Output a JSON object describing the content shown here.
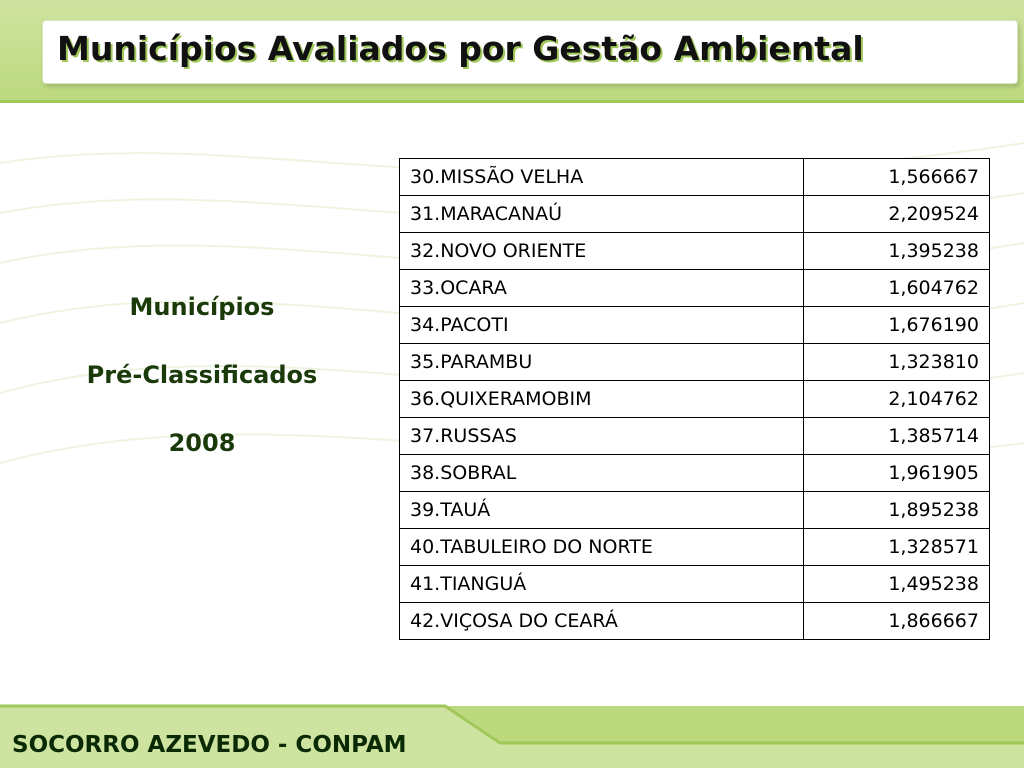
{
  "header": {
    "title": "Municípios Avaliados por Gestão Ambiental"
  },
  "side": {
    "line1": "Municípios",
    "line2": "Pré-Classificados",
    "line3": "2008"
  },
  "table": {
    "rows": [
      {
        "name": "30.MISSÃO VELHA",
        "value": "1,566667"
      },
      {
        "name": "31.MARACANAÚ",
        "value": "2,209524"
      },
      {
        "name": "32.NOVO ORIENTE",
        "value": "1,395238"
      },
      {
        "name": "33.OCARA",
        "value": "1,604762"
      },
      {
        "name": "34.PACOTI",
        "value": "1,676190"
      },
      {
        "name": "35.PARAMBU",
        "value": "1,323810"
      },
      {
        "name": "36.QUIXERAMOBIM",
        "value": "2,104762"
      },
      {
        "name": "37.RUSSAS",
        "value": "1,385714"
      },
      {
        "name": "38.SOBRAL",
        "value": "1,961905"
      },
      {
        "name": "39.TAUÁ",
        "value": "1,895238"
      },
      {
        "name": "40.TABULEIRO DO NORTE",
        "value": "1,328571"
      },
      {
        "name": "41.TIANGUÁ",
        "value": "1,495238"
      },
      {
        "name": "42.VIÇOSA DO CEARÁ",
        "value": "1,866667"
      }
    ]
  },
  "footer": {
    "text": "SOCORRO AZEVEDO - CONPAM"
  },
  "colors": {
    "accent": "#bcd97e",
    "title_shadow": "#9fc75a",
    "side_text": "#1a3a0a"
  }
}
